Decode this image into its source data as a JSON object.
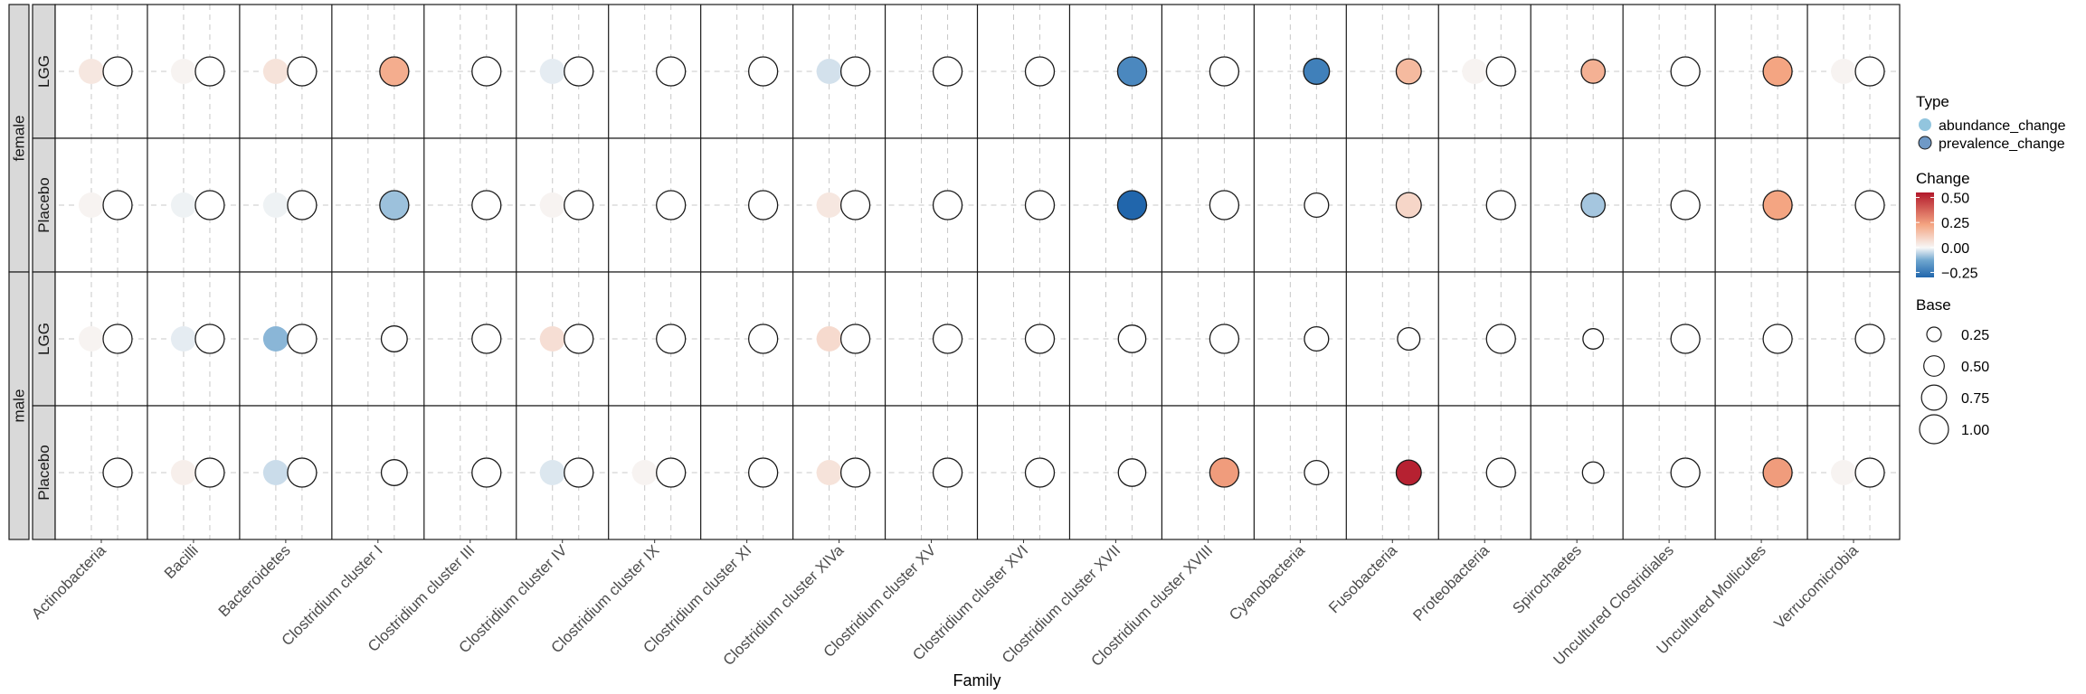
{
  "chart_data": {
    "type": "scatter",
    "xlabel": "Family",
    "families": [
      "Actinobacteria",
      "Bacilli",
      "Bacteroidetes",
      "Clostridium cluster I",
      "Clostridium cluster III",
      "Clostridium cluster IV",
      "Clostridium cluster IX",
      "Clostridium cluster XI",
      "Clostridium cluster XIVa",
      "Clostridium cluster XV",
      "Clostridium cluster XVI",
      "Clostridium cluster XVII",
      "Clostridium cluster XVIII",
      "Cyanobacteria",
      "Fusobacteria",
      "Proteobacteria",
      "Spirochaetes",
      "Uncultured Clostridiales",
      "Uncultured Mollicutes",
      "Verrucomicrobia"
    ],
    "facet_outer": [
      "female",
      "male"
    ],
    "facet_inner": [
      "LGG",
      "Placebo"
    ],
    "facets": [
      {
        "sex": "female",
        "group": "LGG",
        "abundance_change": [
          0.04,
          0.01,
          0.05,
          null,
          0,
          -0.02,
          0,
          0,
          -0.04,
          0,
          0,
          null,
          0,
          null,
          null,
          0.01,
          null,
          0,
          null,
          0.01
        ],
        "prevalence_change": [
          null,
          null,
          null,
          0.18,
          null,
          null,
          null,
          null,
          null,
          null,
          null,
          -0.22,
          null,
          -0.24,
          0.15,
          null,
          0.17,
          null,
          0.2,
          null
        ],
        "base": [
          1.0,
          1.0,
          1.0,
          1.0,
          1.0,
          1.0,
          1.0,
          1.0,
          1.0,
          1.0,
          1.0,
          1.0,
          1.0,
          0.8,
          0.75,
          1.0,
          0.68,
          1.0,
          1.0,
          1.0
        ]
      },
      {
        "sex": "female",
        "group": "Placebo",
        "abundance_change": [
          0.01,
          -0.01,
          -0.01,
          null,
          0,
          0.01,
          0,
          0,
          0.04,
          0,
          0,
          null,
          0,
          null,
          null,
          0,
          null,
          0,
          null,
          0
        ],
        "prevalence_change": [
          null,
          null,
          null,
          -0.1,
          null,
          null,
          null,
          null,
          null,
          null,
          null,
          -0.31,
          null,
          null,
          0.08,
          null,
          -0.09,
          null,
          0.2,
          null
        ],
        "base": [
          1.0,
          1.0,
          1.0,
          1.0,
          1.0,
          1.0,
          1.0,
          1.0,
          1.0,
          1.0,
          1.0,
          1.0,
          1.0,
          0.7,
          0.75,
          1.0,
          0.68,
          1.0,
          1.0,
          1.0
        ]
      },
      {
        "sex": "male",
        "group": "LGG",
        "abundance_change": [
          0.01,
          -0.02,
          -0.12,
          0,
          0,
          0.06,
          0,
          0,
          0.07,
          0,
          0,
          0,
          0,
          0,
          0,
          0,
          0,
          0,
          0,
          0
        ],
        "prevalence_change": [
          null,
          null,
          null,
          null,
          null,
          null,
          null,
          null,
          null,
          null,
          null,
          null,
          null,
          null,
          null,
          null,
          null,
          null,
          null,
          null
        ],
        "base": [
          1.0,
          1.0,
          1.0,
          0.8,
          1.0,
          1.0,
          1.0,
          1.0,
          1.0,
          1.0,
          1.0,
          0.9,
          1.0,
          0.7,
          0.6,
          1.0,
          0.5,
          1.0,
          1.0,
          1.0
        ]
      },
      {
        "sex": "male",
        "group": "Placebo",
        "abundance_change": [
          0,
          0.02,
          -0.05,
          0,
          0,
          -0.03,
          0.01,
          0,
          0.05,
          0,
          0,
          0,
          null,
          0,
          null,
          0,
          0,
          0,
          null,
          0.01
        ],
        "prevalence_change": [
          null,
          null,
          null,
          null,
          null,
          null,
          null,
          null,
          null,
          null,
          null,
          null,
          0.22,
          null,
          0.48,
          null,
          null,
          null,
          0.22,
          null
        ],
        "base": [
          1.0,
          1.0,
          1.0,
          0.8,
          1.0,
          1.0,
          1.0,
          1.0,
          1.0,
          1.0,
          1.0,
          0.9,
          1.0,
          0.7,
          0.75,
          1.0,
          0.55,
          1.0,
          1.0,
          1.0
        ]
      }
    ],
    "color_scale": {
      "min": -0.3,
      "max": 0.55,
      "low": "#2166ac",
      "mid": "#f7f7f7",
      "high": "#b2182b"
    },
    "grid": true,
    "legend_placement": "right",
    "legends": {
      "type": {
        "title": "Type",
        "entries": [
          {
            "label": "abundance_change",
            "color": "#92c5de"
          },
          {
            "label": "prevalence_change",
            "color": "#6f99c6"
          }
        ]
      },
      "change": {
        "title": "Change",
        "ticks": [
          "0.50",
          "0.25",
          "0.00",
          "−0.25"
        ],
        "tick_values": [
          0.5,
          0.25,
          0,
          -0.25
        ]
      },
      "base": {
        "title": "Base",
        "entries": [
          {
            "label": "0.25",
            "value": 0.25
          },
          {
            "label": "0.50",
            "value": 0.5
          },
          {
            "label": "0.75",
            "value": 0.75
          },
          {
            "label": "1.00",
            "value": 1.0
          }
        ]
      }
    }
  }
}
